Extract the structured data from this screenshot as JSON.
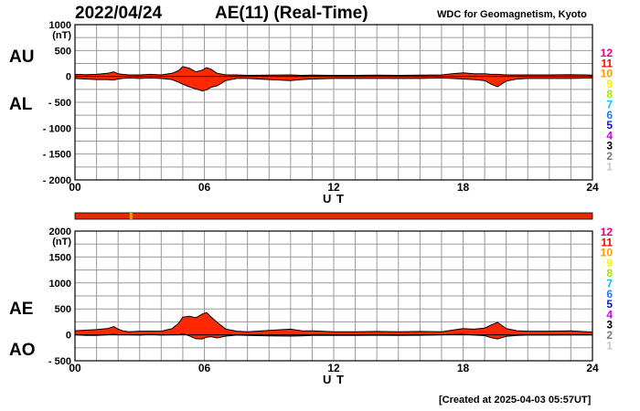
{
  "header": {
    "date": "2022/04/24",
    "title": "AE(11) (Real-Time)",
    "org": "WDC for Geomagnetism, Kyoto"
  },
  "footer": {
    "created": "[Created at 2025-04-03 05:57UT]"
  },
  "legend": {
    "labels": [
      "12",
      "11",
      "10",
      "9",
      "8",
      "7",
      "6",
      "5",
      "4",
      "3",
      "2",
      "1"
    ],
    "colors": [
      "#e8008a",
      "#e81000",
      "#ff9a00",
      "#ffee00",
      "#a0e800",
      "#00c8e8",
      "#1f78ff",
      "#1010c0",
      "#c800e8",
      "#000000",
      "#7a7a7a",
      "#c8c8c8"
    ]
  },
  "chart_data": [
    {
      "type": "area",
      "panel": "AU-AL",
      "series_labels": [
        "AU",
        "AL"
      ],
      "unit": "(nT)",
      "yticks": [
        "1000",
        "500",
        "0",
        "- 500",
        "- 1000",
        "- 1500",
        "- 2000"
      ],
      "ytick_values": [
        1000,
        500,
        0,
        -500,
        -1000,
        -1500,
        -2000
      ],
      "ylim": [
        -2000,
        1000
      ],
      "xlim": [
        0,
        24
      ],
      "xticks": [
        "00",
        "06",
        "12",
        "18",
        "24"
      ],
      "xlabel": "U T",
      "fill_color": "#ff2800",
      "x": [
        0,
        0.5,
        1,
        1.5,
        1.8,
        2,
        2.2,
        2.5,
        3,
        3.5,
        4,
        4.5,
        4.8,
        5,
        5.3,
        5.6,
        5.9,
        6.1,
        6.3,
        6.6,
        7,
        7.5,
        8,
        9,
        10,
        10.5,
        11,
        12,
        13,
        14,
        15,
        16,
        17,
        17.5,
        18,
        18.5,
        19,
        19.3,
        19.6,
        20,
        20.5,
        21,
        22,
        23,
        24
      ],
      "au": [
        40,
        35,
        40,
        60,
        90,
        50,
        40,
        30,
        30,
        40,
        30,
        60,
        110,
        190,
        160,
        90,
        120,
        170,
        140,
        60,
        30,
        30,
        20,
        25,
        30,
        20,
        25,
        20,
        20,
        25,
        20,
        25,
        30,
        50,
        70,
        50,
        50,
        40,
        40,
        30,
        30,
        30,
        30,
        35,
        25
      ],
      "al": [
        -40,
        -50,
        -60,
        -60,
        -70,
        -50,
        -40,
        -30,
        -40,
        -30,
        -40,
        -60,
        -110,
        -150,
        -200,
        -240,
        -280,
        -260,
        -210,
        -180,
        -80,
        -40,
        -40,
        -60,
        -80,
        -60,
        -50,
        -40,
        -40,
        -40,
        -40,
        -40,
        -30,
        -40,
        -50,
        -60,
        -80,
        -150,
        -200,
        -90,
        -50,
        -40,
        -40,
        -40,
        -30
      ]
    },
    {
      "type": "area",
      "panel": "AE-AO",
      "series_labels": [
        "AE",
        "AO"
      ],
      "unit": "(nT)",
      "yticks": [
        "2000",
        "1500",
        "1000",
        "500",
        "0",
        "- 500"
      ],
      "ytick_values": [
        2000,
        1500,
        1000,
        500,
        0,
        -500
      ],
      "ylim": [
        -500,
        2000
      ],
      "xlim": [
        0,
        24
      ],
      "xticks": [
        "00",
        "06",
        "12",
        "18",
        "24"
      ],
      "xlabel": "U T",
      "fill_color": "#ff2800",
      "x": [
        0,
        0.5,
        1,
        1.5,
        1.8,
        2,
        2.2,
        2.5,
        3,
        3.5,
        4,
        4.5,
        4.8,
        5,
        5.3,
        5.6,
        5.9,
        6.1,
        6.3,
        6.6,
        7,
        7.5,
        8,
        9,
        10,
        10.5,
        11,
        12,
        13,
        14,
        15,
        16,
        17,
        17.5,
        18,
        18.5,
        19,
        19.3,
        19.6,
        20,
        20.5,
        21,
        22,
        23,
        24
      ],
      "ae": [
        80,
        90,
        100,
        120,
        160,
        110,
        80,
        60,
        70,
        70,
        70,
        120,
        220,
        340,
        360,
        330,
        400,
        430,
        350,
        240,
        110,
        70,
        60,
        85,
        110,
        80,
        75,
        60,
        60,
        65,
        60,
        65,
        60,
        90,
        120,
        110,
        130,
        190,
        240,
        120,
        80,
        70,
        70,
        75,
        55
      ],
      "ao": [
        0,
        -10,
        -10,
        0,
        10,
        0,
        0,
        0,
        -5,
        5,
        -5,
        0,
        0,
        20,
        -20,
        -75,
        -80,
        -45,
        -35,
        -60,
        -25,
        -5,
        -10,
        -20,
        -25,
        -20,
        -12,
        -10,
        -10,
        -8,
        -10,
        -8,
        0,
        5,
        10,
        -5,
        -15,
        -55,
        -80,
        -30,
        -10,
        -5,
        -5,
        -3,
        -3
      ]
    }
  ],
  "quality_bar": {
    "color": "#e82800",
    "marker_color": "#ff9a00",
    "marker_hour": 2.6
  }
}
